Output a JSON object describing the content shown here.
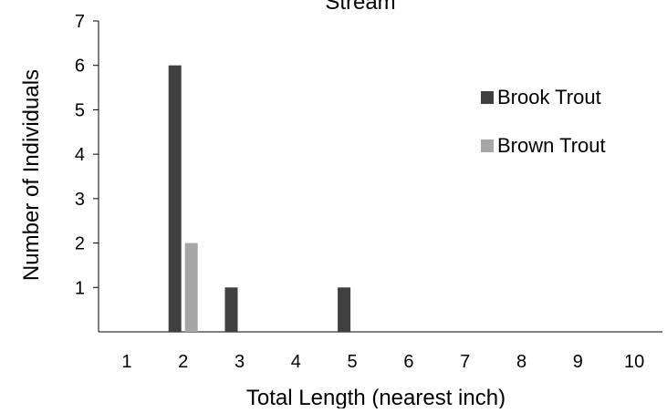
{
  "chart_data": {
    "type": "bar",
    "title": "Stream",
    "xlabel": "Total Length (nearest inch)",
    "ylabel": "Number of Individuals",
    "categories": [
      "1",
      "2",
      "3",
      "4",
      "5",
      "6",
      "7",
      "8",
      "9",
      "10"
    ],
    "yticks": [
      "1",
      "2",
      "3",
      "4",
      "5",
      "6",
      "7"
    ],
    "ylim": [
      0,
      7
    ],
    "grid": false,
    "legend_position": "right",
    "series": [
      {
        "name": "Brook Trout",
        "color": "#404040",
        "values": [
          0,
          6,
          1,
          0,
          1,
          0,
          0,
          0,
          0,
          0
        ]
      },
      {
        "name": "Brown Trout",
        "color": "#a6a6a6",
        "values": [
          0,
          2,
          0,
          0,
          0,
          0,
          0,
          0,
          0,
          0
        ]
      }
    ]
  }
}
